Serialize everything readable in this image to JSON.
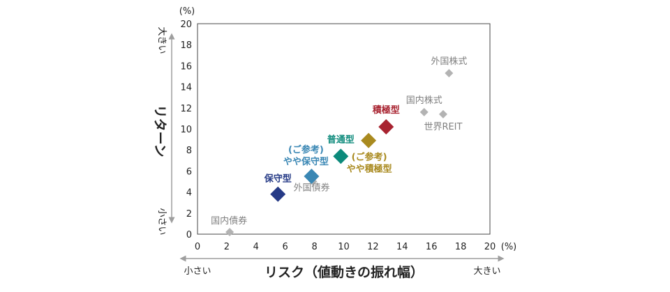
{
  "colors": {
    "asset": "#b3b3b3",
    "asset_text": "#808080",
    "conservative": "#253a86",
    "semi_conservative": "#3a87b4",
    "balanced": "#0c8a7b",
    "semi_aggressive": "#a98a1f",
    "aggressive": "#a82330",
    "axis_arrow": "#9e9e9e"
  },
  "chart_data": {
    "type": "scatter",
    "x_unit": "(%)",
    "y_unit": "(%)",
    "xlabel": "リスク（値動きの振れ幅）",
    "ylabel": "リターン",
    "x_low_label": "小さい",
    "x_high_label": "大きい",
    "y_low_label": "小さい",
    "y_high_label": "大きい",
    "xlim": [
      0,
      20
    ],
    "ylim": [
      0,
      20
    ],
    "xticks": [
      "0",
      "2",
      "4",
      "6",
      "8",
      "10",
      "12",
      "14",
      "16",
      "18",
      "20"
    ],
    "yticks": [
      "0",
      "2",
      "4",
      "6",
      "8",
      "10",
      "12",
      "14",
      "16",
      "18",
      "20"
    ],
    "grid": false,
    "assets": [
      {
        "name": "外国株式",
        "x": 17.2,
        "y": 15.3
      },
      {
        "name": "国内株式",
        "x": 15.5,
        "y": 11.6
      },
      {
        "name": "世界REIT",
        "x": 16.8,
        "y": 11.4
      },
      {
        "name": "外国債券",
        "x": 7.9,
        "y": 5.0
      },
      {
        "name": "国内債券",
        "x": 2.2,
        "y": 0.2
      }
    ],
    "portfolios": [
      {
        "name": "保守型",
        "x": 5.5,
        "y": 3.8,
        "color_key": "conservative"
      },
      {
        "name": "(ご参考)\nやや保守型",
        "x": 7.8,
        "y": 5.5,
        "color_key": "semi_conservative"
      },
      {
        "name": "普通型",
        "x": 9.8,
        "y": 7.4,
        "color_key": "balanced"
      },
      {
        "name": "(ご参考)\nやや積極型",
        "x": 11.7,
        "y": 8.9,
        "color_key": "semi_aggressive"
      },
      {
        "name": "積極型",
        "x": 12.9,
        "y": 10.2,
        "color_key": "aggressive"
      }
    ]
  }
}
